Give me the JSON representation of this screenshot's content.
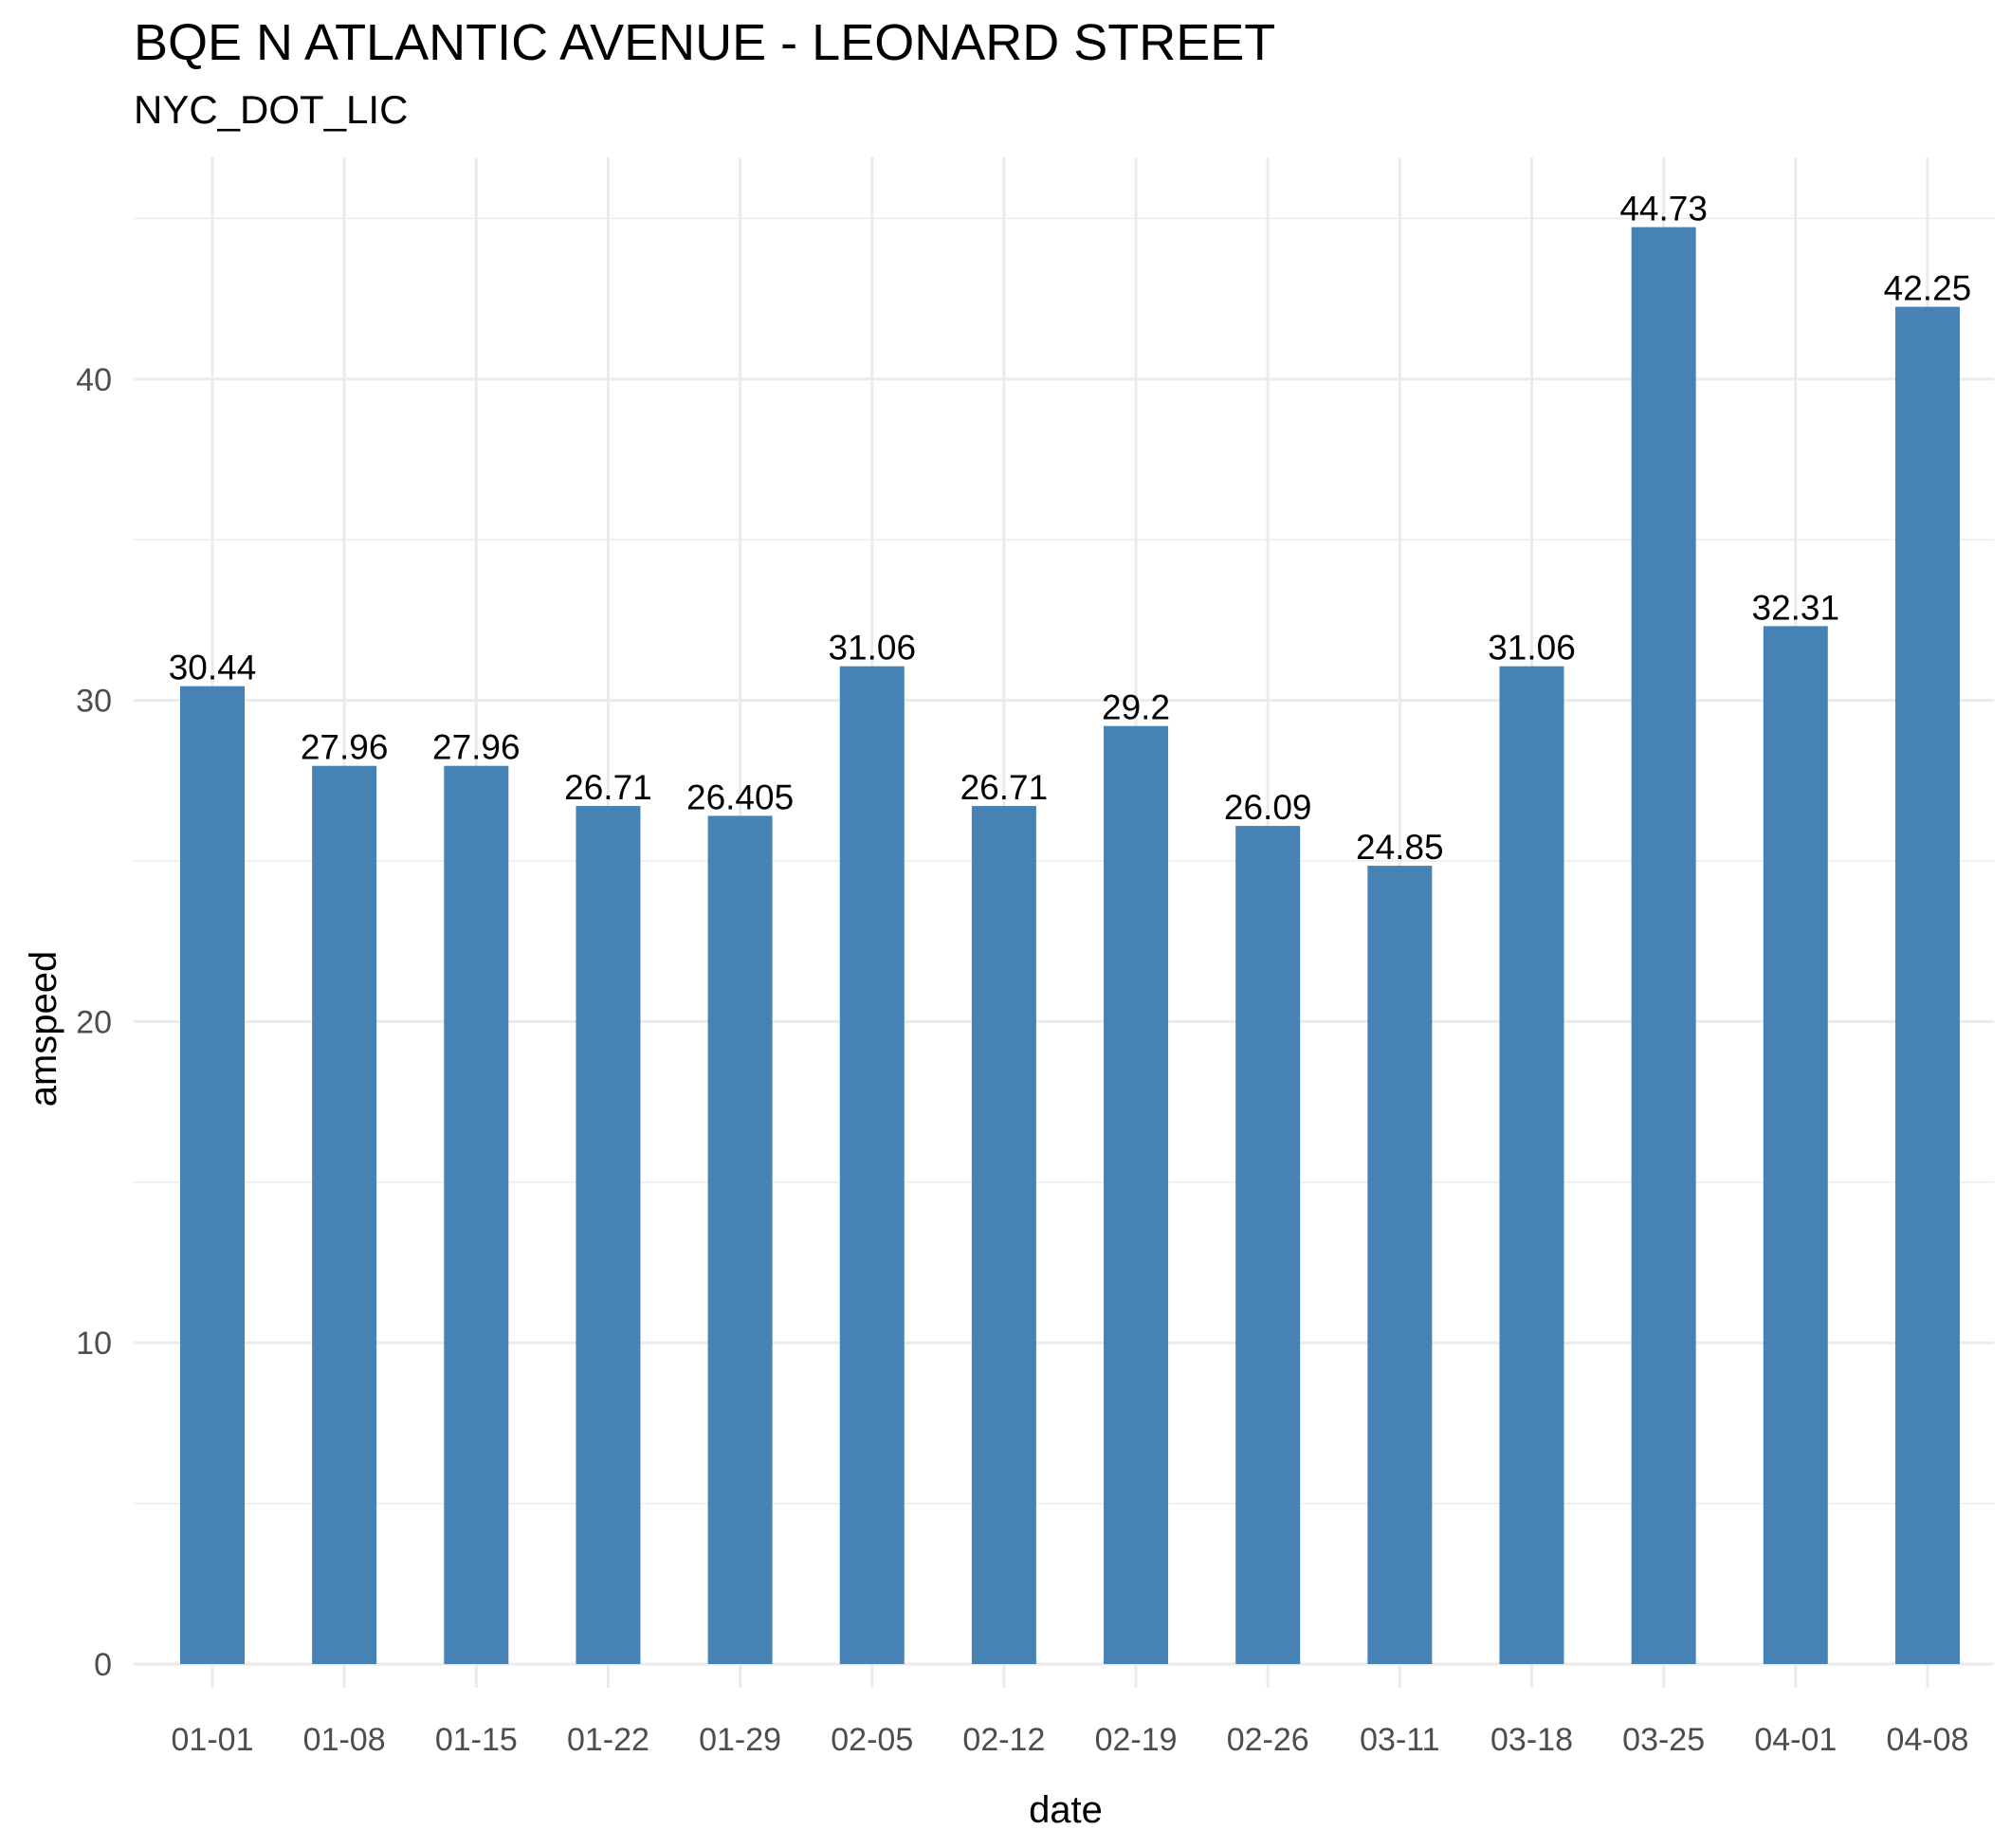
{
  "chart_data": {
    "type": "bar",
    "title": "BQE N ATLANTIC AVENUE - LEONARD STREET",
    "subtitle": "NYC_DOT_LIC",
    "xlabel": "date",
    "ylabel": "amspeed",
    "categories": [
      "01-01",
      "01-08",
      "01-15",
      "01-22",
      "01-29",
      "02-05",
      "02-12",
      "02-19",
      "02-26",
      "03-11",
      "03-18",
      "03-25",
      "04-01",
      "04-08"
    ],
    "values": [
      30.44,
      27.96,
      27.96,
      26.71,
      26.405,
      31.06,
      26.71,
      29.2,
      26.09,
      24.85,
      31.06,
      44.73,
      32.31,
      42.25
    ],
    "value_labels": [
      "30.44",
      "27.96",
      "27.96",
      "26.71",
      "26.405",
      "31.06",
      "26.71",
      "29.2",
      "26.09",
      "24.85",
      "31.06",
      "44.73",
      "32.31",
      "42.25"
    ],
    "y_ticks": [
      0,
      10,
      20,
      30,
      40
    ],
    "ylim": [
      0,
      46.9
    ],
    "bar_color": "#4682B4",
    "grid": true,
    "legend": "none"
  }
}
